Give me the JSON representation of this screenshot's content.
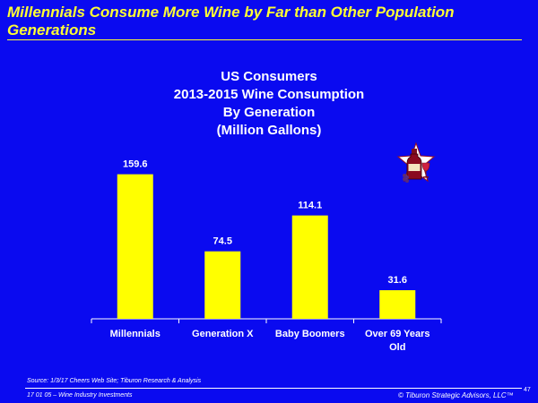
{
  "slide": {
    "title_line1": "Millennials Consume More Wine by Far than Other Population",
    "title_line2": "Generations",
    "source": "Source:  1/3/17 Cheers Web Site; Tiburon Research & Analysis",
    "footer_left": "17 01 05 – Wine Industry Investments",
    "footer_right": "© Tiburon Strategic Advisors, LLC™",
    "page_number": "47"
  },
  "colors": {
    "background": "#0a0af0",
    "title": "#ffff33",
    "bar": "#ffff00",
    "text": "#ffffff"
  },
  "chart_data": {
    "type": "bar",
    "title_lines": [
      "US Consumers",
      "2013-2015 Wine Consumption",
      "By Generation",
      "(Million Gallons)"
    ],
    "categories": [
      [
        "Millennials"
      ],
      [
        "Generation X"
      ],
      [
        "Baby Boomers"
      ],
      [
        "Over 69 Years",
        "Old"
      ]
    ],
    "values": [
      159.6,
      74.5,
      114.1,
      31.6
    ],
    "data_labels": [
      "159.6",
      "74.5",
      "114.1",
      "31.6"
    ],
    "ylim": [
      0,
      175
    ],
    "grid": false,
    "legend": "none"
  }
}
